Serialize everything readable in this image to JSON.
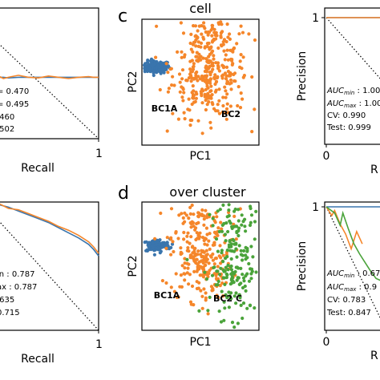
{
  "panels": {
    "c": {
      "letter": "c",
      "title": "cell"
    },
    "d": {
      "letter": "d",
      "title": "over cluster"
    }
  },
  "colors": {
    "blue": "#3a75ad",
    "orange": "#f5862a",
    "green": "#4aa33a",
    "frame": "#000000"
  },
  "chart_data": [
    {
      "id": "pr-top-left",
      "type": "line",
      "xlabel": "Recall",
      "ylabel": "",
      "xticks": [
        "1"
      ],
      "xlim": [
        0,
        1
      ],
      "ylim": [
        0,
        1
      ],
      "series": [
        {
          "color": "#3a75ad",
          "x": [
            0.0,
            0.05,
            0.1,
            0.2,
            0.3,
            0.4,
            0.5,
            0.6,
            0.7,
            0.8,
            0.9,
            0.95,
            1.0
          ],
          "y": [
            0.47,
            0.47,
            0.465,
            0.47,
            0.47,
            0.47,
            0.47,
            0.47,
            0.47,
            0.47,
            0.47,
            0.47,
            0.47
          ]
        },
        {
          "color": "#f5862a",
          "x": [
            0.0,
            0.05,
            0.1,
            0.2,
            0.3,
            0.4,
            0.5,
            0.6,
            0.7,
            0.8,
            0.9,
            0.95,
            1.0
          ],
          "y": [
            0.48,
            0.46,
            0.47,
            0.485,
            0.47,
            0.465,
            0.48,
            0.47,
            0.46,
            0.47,
            0.475,
            0.47,
            0.47
          ]
        }
      ],
      "annotations": [
        "= 0.470",
        "= 0.495",
        ".460",
        ".502"
      ]
    },
    {
      "id": "pr-bottom-left",
      "type": "line",
      "xlabel": "Recall",
      "ylabel": "",
      "xticks": [
        "1"
      ],
      "xlim": [
        0,
        1
      ],
      "ylim": [
        0,
        1
      ],
      "series": [
        {
          "color": "#3a75ad",
          "x": [
            0.0,
            0.1,
            0.2,
            0.3,
            0.4,
            0.5,
            0.6,
            0.7,
            0.8,
            0.9,
            0.95,
            1.0
          ],
          "y": [
            0.98,
            0.96,
            0.93,
            0.9,
            0.87,
            0.84,
            0.8,
            0.76,
            0.72,
            0.67,
            0.63,
            0.58
          ]
        },
        {
          "color": "#f5862a",
          "x": [
            0.0,
            0.1,
            0.2,
            0.3,
            0.4,
            0.5,
            0.6,
            0.7,
            0.8,
            0.9,
            0.95,
            1.0
          ],
          "y": [
            0.99,
            0.95,
            0.94,
            0.91,
            0.88,
            0.85,
            0.81,
            0.78,
            0.74,
            0.69,
            0.65,
            0.6
          ]
        }
      ],
      "annotations": [
        "in : 0.787",
        "ax : 0.787",
        ".635",
        "0.715"
      ]
    },
    {
      "id": "pca-cell",
      "type": "scatter",
      "title": "cell",
      "xlabel": "PC1",
      "ylabel": "PC2",
      "clusters": [
        {
          "label": "BC1A",
          "color": "#3a75ad",
          "center": [
            0.12,
            0.62
          ],
          "spread": [
            0.06,
            0.025
          ],
          "n": 140
        },
        {
          "label": "BC2",
          "color": "#f5862a",
          "center": [
            0.58,
            0.62
          ],
          "spread": [
            0.16,
            0.2
          ],
          "n": 420
        }
      ]
    },
    {
      "id": "pca-over-cluster",
      "type": "scatter",
      "title": "over cluster",
      "xlabel": "PC1",
      "ylabel": "PC2",
      "clusters": [
        {
          "label": "BC1A",
          "color": "#3a75ad",
          "center": [
            0.12,
            0.66
          ],
          "spread": [
            0.06,
            0.025
          ],
          "n": 140
        },
        {
          "label": "BC2",
          "color": "#f5862a",
          "center": [
            0.5,
            0.6
          ],
          "spread": [
            0.13,
            0.18
          ],
          "n": 300
        },
        {
          "label": "C",
          "color": "#4aa33a",
          "center": [
            0.8,
            0.5
          ],
          "spread": [
            0.11,
            0.2
          ],
          "n": 220
        }
      ]
    },
    {
      "id": "pr-top-right",
      "type": "line",
      "xlabel": "R",
      "ylabel": "Precision",
      "xticks": [
        "0"
      ],
      "yticks": [
        "1"
      ],
      "xlim": [
        0,
        1
      ],
      "ylim": [
        0,
        1
      ],
      "series": [
        {
          "color": "#3a75ad",
          "x": [
            0.0,
            1.0
          ],
          "y": [
            1.0,
            1.0
          ]
        },
        {
          "color": "#f5862a",
          "x": [
            0.0,
            1.0
          ],
          "y": [
            1.0,
            1.0
          ]
        }
      ],
      "annotations": [
        "AUC_min : 1.00",
        "AUC_max : 1.00",
        "CV: 0.990",
        "Test: 0.999"
      ]
    },
    {
      "id": "pr-bottom-right",
      "type": "line",
      "xlabel": "R",
      "ylabel": "Precision",
      "xticks": [
        "0"
      ],
      "yticks": [
        "1"
      ],
      "xlim": [
        0,
        1
      ],
      "ylim": [
        0,
        1
      ],
      "series": [
        {
          "color": "#3a75ad",
          "x": [
            0.0,
            1.0
          ],
          "y": [
            1.0,
            1.0
          ]
        },
        {
          "color": "#f5862a",
          "x": [
            0.0,
            0.1,
            0.15,
            0.25,
            0.35,
            0.45,
            0.55,
            0.65
          ],
          "y": [
            1.0,
            0.93,
            0.97,
            0.86,
            0.78,
            0.66,
            0.8,
            0.7
          ]
        },
        {
          "color": "#4aa33a",
          "x": [
            0.0,
            0.15,
            0.25,
            0.3,
            0.4,
            0.5,
            0.6,
            0.7,
            0.8,
            0.9,
            1.0
          ],
          "y": [
            1.0,
            0.95,
            0.85,
            0.95,
            0.82,
            0.7,
            0.62,
            0.55,
            0.48,
            0.42,
            0.4
          ]
        }
      ],
      "annotations": [
        "AUC_min : 0.67",
        "AUC_max : 0.9",
        "CV: 0.783",
        "Test: 0.847"
      ]
    }
  ]
}
